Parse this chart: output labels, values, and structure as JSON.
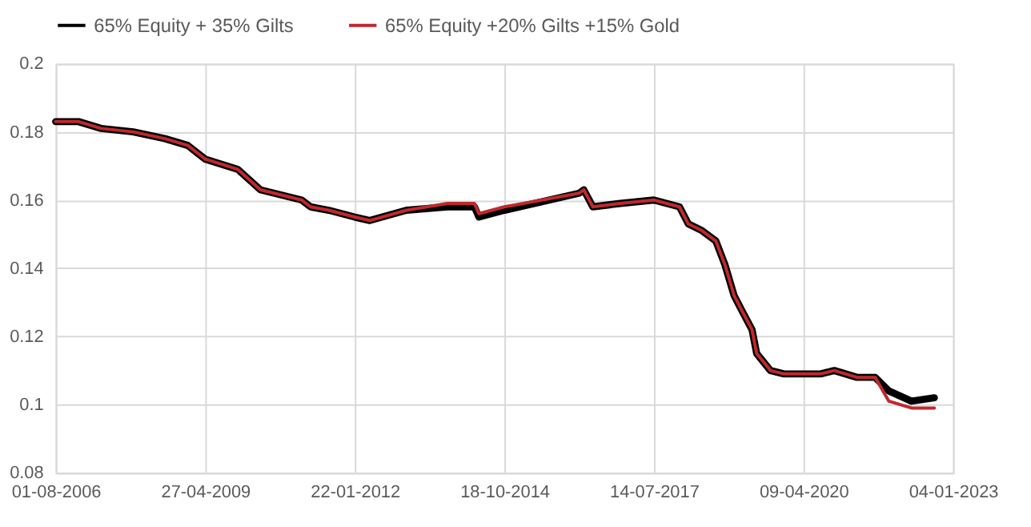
{
  "chart_data": {
    "type": "line",
    "x": [
      "2006-08-01",
      "2007-01-01",
      "2007-06-01",
      "2008-01-01",
      "2008-08-01",
      "2009-01-01",
      "2009-04-27",
      "2009-12-01",
      "2010-05-01",
      "2011-02-01",
      "2011-04-01",
      "2011-08-01",
      "2012-01-22",
      "2012-05-01",
      "2013-01-01",
      "2013-10-01",
      "2014-04-01",
      "2014-05-01",
      "2014-10-18",
      "2016-03-01",
      "2016-04-01",
      "2016-06-01",
      "2016-12-01",
      "2017-07-14",
      "2018-01-01",
      "2018-03-01",
      "2018-06-01",
      "2018-09-01",
      "2018-11-01",
      "2019-01-01",
      "2019-03-01",
      "2019-05-01",
      "2019-06-01",
      "2019-09-01",
      "2019-12-01",
      "2020-08-01",
      "2020-11-01",
      "2021-04-01",
      "2021-08-01",
      "2021-11-01",
      "2022-04-01",
      "2022-09-01"
    ],
    "series": [
      {
        "name": "65% Equity + 35% Gilts",
        "color": "#000000",
        "values": [
          0.183,
          0.183,
          0.181,
          0.18,
          0.178,
          0.176,
          0.172,
          0.169,
          0.163,
          0.16,
          0.158,
          0.157,
          0.155,
          0.154,
          0.157,
          0.158,
          0.158,
          0.155,
          0.157,
          0.162,
          0.163,
          0.158,
          0.159,
          0.16,
          0.158,
          0.153,
          0.151,
          0.148,
          0.141,
          0.132,
          0.127,
          0.122,
          0.115,
          0.11,
          0.109,
          0.109,
          0.11,
          0.108,
          0.108,
          0.104,
          0.101,
          0.102
        ]
      },
      {
        "name": "65% Equity +20% Gilts +15% Gold",
        "color": "#c0282d",
        "values": [
          0.183,
          0.183,
          0.181,
          0.18,
          0.178,
          0.176,
          0.172,
          0.169,
          0.163,
          0.16,
          0.158,
          0.157,
          0.155,
          0.154,
          0.157,
          0.159,
          0.159,
          0.156,
          0.158,
          0.162,
          0.163,
          0.158,
          0.159,
          0.16,
          0.158,
          0.153,
          0.151,
          0.148,
          0.141,
          0.132,
          0.127,
          0.122,
          0.115,
          0.11,
          0.109,
          0.109,
          0.11,
          0.108,
          0.108,
          0.101,
          0.099,
          0.099
        ]
      }
    ],
    "xlim": [
      "2006-08-01",
      "2023-01-04"
    ],
    "xticks": [
      {
        "value": "2006-08-01",
        "label": "01-08-2006"
      },
      {
        "value": "2009-04-27",
        "label": "27-04-2009"
      },
      {
        "value": "2012-01-22",
        "label": "22-01-2012"
      },
      {
        "value": "2014-10-18",
        "label": "18-10-2014"
      },
      {
        "value": "2017-07-14",
        "label": "14-07-2017"
      },
      {
        "value": "2020-04-09",
        "label": "09-04-2020"
      },
      {
        "value": "2023-01-04",
        "label": "04-01-2023"
      }
    ],
    "ylim": [
      0.08,
      0.2
    ],
    "yticks": [
      0.08,
      {
        "value": 0.1,
        "label": "0.1"
      },
      0.12,
      0.14,
      0.16,
      0.18,
      {
        "value": 0.2,
        "label": "0.2"
      }
    ],
    "grid": true,
    "legend": "top",
    "marker": "none",
    "line_style": "solid"
  }
}
